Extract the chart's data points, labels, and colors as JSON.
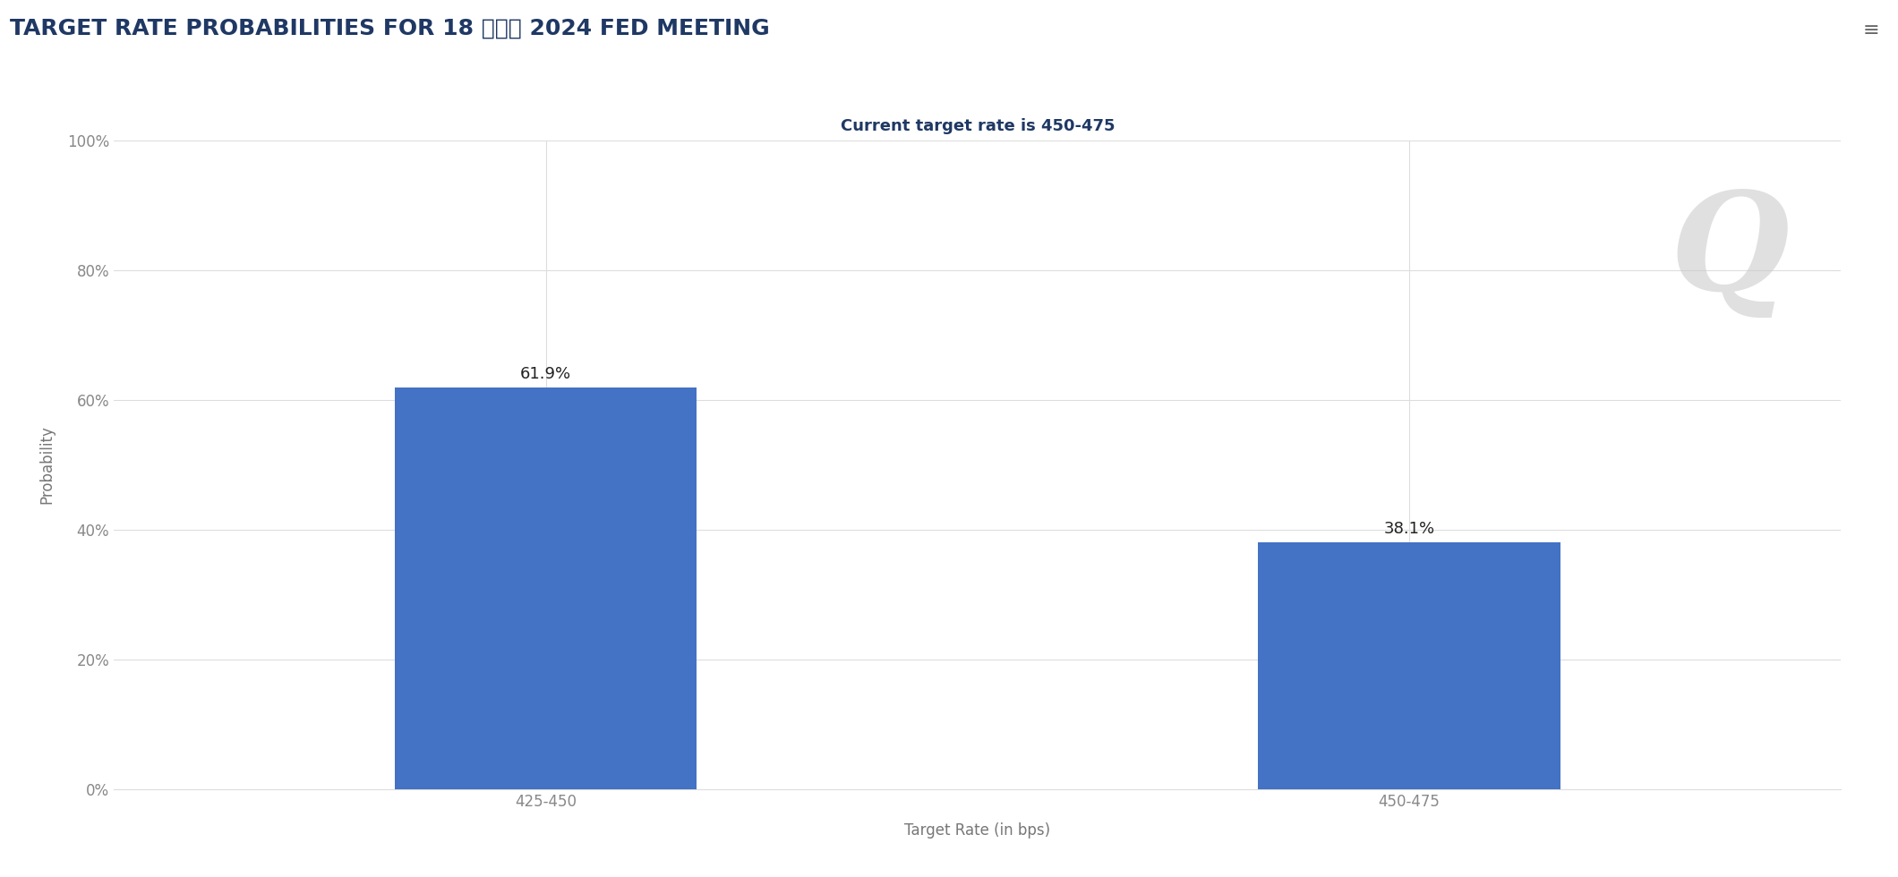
{
  "title": "TARGET RATE PROBABILITIES FOR 18 十二月 2024 FED MEETING",
  "subtitle": "Current target rate is 450-475",
  "categories": [
    "425-450",
    "450-475"
  ],
  "values": [
    61.9,
    38.1
  ],
  "bar_color": "#4472C4",
  "xlabel": "Target Rate (in bps)",
  "ylabel": "Probability",
  "ylim": [
    0,
    100
  ],
  "ytick_labels": [
    "0%",
    "20%",
    "40%",
    "60%",
    "80%",
    "100%"
  ],
  "ytick_values": [
    0,
    20,
    40,
    60,
    80,
    100
  ],
  "title_color": "#1F3864",
  "subtitle_color": "#1F3864",
  "axis_label_color": "#777777",
  "tick_color": "#888888",
  "background_color": "#ffffff",
  "grid_color": "#dddddd",
  "bar_label_fontsize": 13,
  "title_fontsize": 18,
  "subtitle_fontsize": 13,
  "xlabel_fontsize": 12,
  "ylabel_fontsize": 12,
  "watermark_text": "Q",
  "watermark_color": "#cccccc",
  "watermark_fontsize": 110
}
